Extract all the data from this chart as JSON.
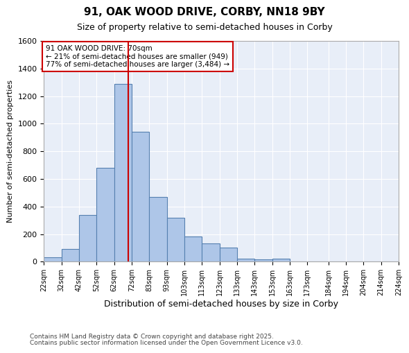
{
  "title": "91, OAK WOOD DRIVE, CORBY, NN18 9BY",
  "subtitle": "Size of property relative to semi-detached houses in Corby",
  "xlabel": "Distribution of semi-detached houses by size in Corby",
  "ylabel": "Number of semi-detached properties",
  "footnote1": "Contains HM Land Registry data © Crown copyright and database right 2025.",
  "footnote2": "Contains public sector information licensed under the Open Government Licence v3.0.",
  "property_size": 70,
  "annotation_text": "91 OAK WOOD DRIVE: 70sqm\n← 21% of semi-detached houses are smaller (949)\n77% of semi-detached houses are larger (3,484) →",
  "bin_edges": [
    22,
    32,
    42,
    52,
    62,
    72,
    82,
    92,
    102,
    112,
    122,
    132,
    142,
    152,
    162,
    172,
    184,
    194,
    204,
    214,
    224
  ],
  "bin_labels": [
    "22sqm",
    "32sqm",
    "42sqm",
    "52sqm",
    "62sqm",
    "72sqm",
    "83sqm",
    "93sqm",
    "103sqm",
    "113sqm",
    "123sqm",
    "133sqm",
    "143sqm",
    "153sqm",
    "163sqm",
    "173sqm",
    "184sqm",
    "194sqm",
    "204sqm",
    "214sqm",
    "224sqm"
  ],
  "counts": [
    30,
    90,
    340,
    680,
    1290,
    940,
    470,
    320,
    185,
    130,
    100,
    20,
    15,
    20,
    0,
    0,
    0,
    0,
    0,
    0
  ],
  "bar_color": "#aec6e8",
  "bar_edge_color": "#5580b0",
  "vline_color": "#cc0000",
  "annotation_box_color": "#cc0000",
  "background_color": "#e8eef8",
  "ylim": [
    0,
    1600
  ],
  "xlim": [
    22,
    224
  ],
  "yticks": [
    0,
    200,
    400,
    600,
    800,
    1000,
    1200,
    1400,
    1600
  ]
}
